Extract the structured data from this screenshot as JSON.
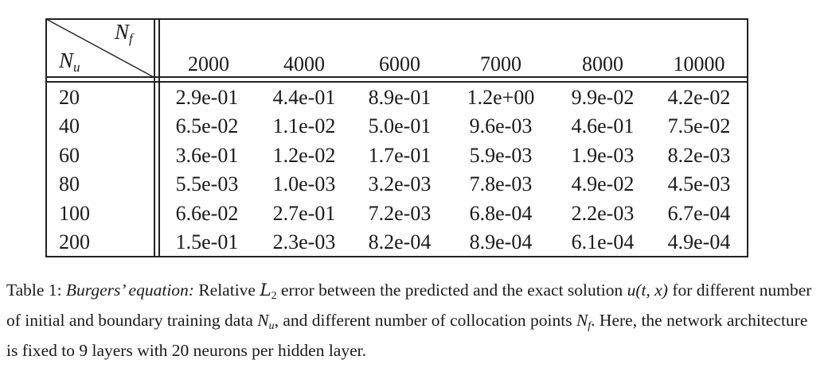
{
  "table": {
    "corner": {
      "top_var": "N",
      "top_sub": "f",
      "bottom_var": "N",
      "bottom_sub": "u"
    },
    "columns": [
      "2000",
      "4000",
      "6000",
      "7000",
      "8000",
      "10000"
    ],
    "rows": [
      {
        "label": "20",
        "values": [
          "2.9e-01",
          "4.4e-01",
          "8.9e-01",
          "1.2e+00",
          "9.9e-02",
          "4.2e-02"
        ]
      },
      {
        "label": "40",
        "values": [
          "6.5e-02",
          "1.1e-02",
          "5.0e-01",
          "9.6e-03",
          "4.6e-01",
          "7.5e-02"
        ]
      },
      {
        "label": "60",
        "values": [
          "3.6e-01",
          "1.2e-02",
          "1.7e-01",
          "5.9e-03",
          "1.9e-03",
          "8.2e-03"
        ]
      },
      {
        "label": "80",
        "values": [
          "5.5e-03",
          "1.0e-03",
          "3.2e-03",
          "7.8e-03",
          "4.9e-02",
          "4.5e-03"
        ]
      },
      {
        "label": "100",
        "values": [
          "6.6e-02",
          "2.7e-01",
          "7.2e-03",
          "6.8e-04",
          "2.2e-03",
          "6.7e-04"
        ]
      },
      {
        "label": "200",
        "values": [
          "1.5e-01",
          "2.3e-03",
          "8.2e-04",
          "8.9e-04",
          "6.1e-04",
          "4.9e-04"
        ]
      }
    ]
  },
  "caption": {
    "label": "Table 1:",
    "subject": "Burgers’ equation:",
    "text_1": "Relative",
    "norm_symbol": "L",
    "norm_sub": "2",
    "text_2": "error between the predicted and the exact solution",
    "func": "u(t, x)",
    "text_3": "for different number of initial and boundary training data",
    "var_nu": "N",
    "var_nu_sub": "u",
    "text_4": ", and different number of collocation points",
    "var_nf": "N",
    "var_nf_sub": "f",
    "text_5": ". Here, the network architecture is fixed to 9 layers with 20 neurons per hidden layer."
  }
}
